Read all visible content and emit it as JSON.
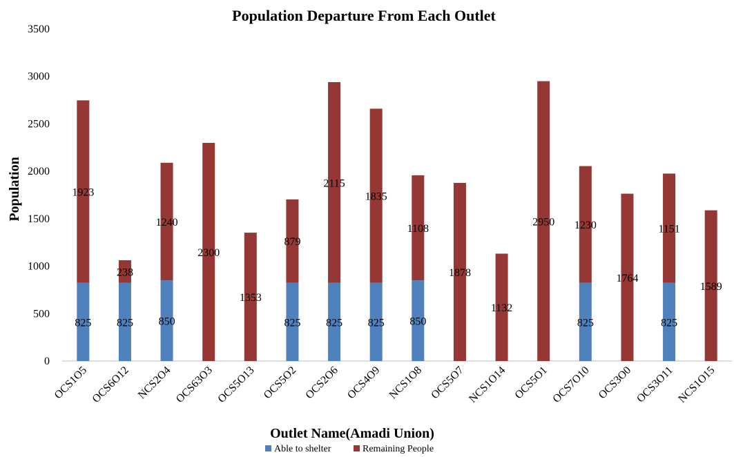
{
  "chart_data": {
    "type": "bar",
    "stacked": true,
    "title": "Population Departure From Each Outlet",
    "xlabel": "Outlet  Name(Amadi Union)",
    "ylabel": "Population",
    "ylim": [
      0,
      3500
    ],
    "yticks": [
      0,
      500,
      1000,
      1500,
      2000,
      2500,
      3000,
      3500
    ],
    "grid": false,
    "legend_position": "bottom",
    "categories": [
      "OCS1O5",
      "OCS6O12",
      "NCS2O4",
      "OCS63O3",
      "OCS5O13",
      "OCS5O2",
      "OCS2O6",
      "OCS4O9",
      "NCS1O8",
      "OCS5O7",
      "NCS1O14",
      "OCS5O1",
      "OCS7O10",
      "OCS3O0",
      "OCS3O11",
      "NCS1O15"
    ],
    "series": [
      {
        "name": "Able to shelter",
        "color": "#4f81bd",
        "values": [
          825,
          825,
          850,
          0,
          0,
          825,
          825,
          825,
          850,
          0,
          0,
          0,
          825,
          0,
          825,
          0
        ],
        "labels": [
          "825",
          "825",
          "850",
          "",
          "",
          "825",
          "825",
          "825",
          "850",
          "",
          "",
          "",
          "825",
          "",
          "825",
          ""
        ]
      },
      {
        "name": "Remaining People",
        "color": "#953735",
        "values": [
          1923,
          238,
          1240,
          2300,
          1353,
          879,
          2115,
          1835,
          1108,
          1878,
          1132,
          2950,
          1230,
          1764,
          1151,
          1589
        ],
        "labels": [
          "1923",
          "238",
          "1240",
          "2300",
          "1353",
          "879",
          "2115",
          "1835",
          "1108",
          "1878",
          "1132",
          "2950",
          "1230",
          "1764",
          "1151",
          "1589"
        ]
      }
    ]
  }
}
